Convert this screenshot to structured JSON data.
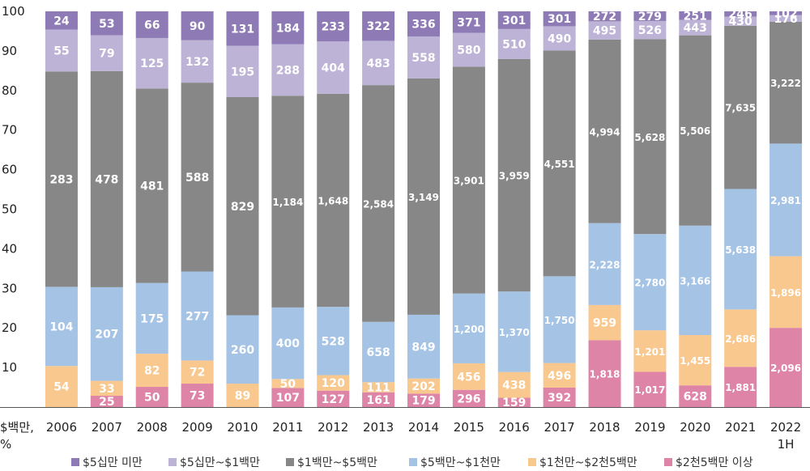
{
  "chart_data": {
    "type": "bar",
    "stacked": true,
    "normalized": "percent",
    "ylabel": "$백만, %",
    "ylim": [
      0,
      100
    ],
    "yticks": [
      10,
      20,
      30,
      40,
      50,
      60,
      70,
      80,
      90,
      100
    ],
    "grid": false,
    "legend_position": "bottom",
    "categories": [
      "2006",
      "2007",
      "2008",
      "2009",
      "2010",
      "2011",
      "2012",
      "2013",
      "2014",
      "2015",
      "2016",
      "2017",
      "2018",
      "2019",
      "2020",
      "2021",
      "2022 1H"
    ],
    "category_lines": [
      [
        "2006"
      ],
      [
        "2007"
      ],
      [
        "2008"
      ],
      [
        "2009"
      ],
      [
        "2010"
      ],
      [
        "2011"
      ],
      [
        "2012"
      ],
      [
        "2013"
      ],
      [
        "2014"
      ],
      [
        "2015"
      ],
      [
        "2016"
      ],
      [
        "2017"
      ],
      [
        "2018"
      ],
      [
        "2019"
      ],
      [
        "2020"
      ],
      [
        "2021"
      ],
      [
        "2022",
        "1H"
      ]
    ],
    "series": [
      {
        "name": "$2천5백만 이상",
        "color": "#de84a7",
        "values": [
          0,
          25,
          50,
          73,
          0,
          107,
          127,
          161,
          179,
          296,
          159,
          392,
          1818,
          1017,
          628,
          1881,
          2096
        ],
        "labels": [
          "",
          "25",
          "50",
          "73",
          "",
          "107",
          "127",
          "161",
          "179",
          "296",
          "159",
          "392",
          "1,818",
          "1,017",
          "628",
          "1,881",
          "2,096"
        ]
      },
      {
        "name": "$1천만~$2천5백만",
        "color": "#f9c88f",
        "values": [
          54,
          33,
          82,
          72,
          89,
          50,
          120,
          111,
          202,
          456,
          438,
          496,
          959,
          1201,
          1455,
          2686,
          1896
        ],
        "labels": [
          "54",
          "33",
          "82",
          "72",
          "89",
          "50",
          "120",
          "111",
          "202",
          "456",
          "438",
          "496",
          "959",
          "1,201",
          "1,455",
          "2,686",
          "1,896"
        ]
      },
      {
        "name": "$5백만~$1천만",
        "color": "#a5c3e5",
        "values": [
          104,
          207,
          175,
          277,
          260,
          400,
          528,
          658,
          849,
          1200,
          1370,
          1750,
          2228,
          2780,
          3166,
          5638,
          2981
        ],
        "labels": [
          "104",
          "207",
          "175",
          "277",
          "260",
          "400",
          "528",
          "658",
          "849",
          "1,200",
          "1,370",
          "1,750",
          "2,228",
          "2,780",
          "3,166",
          "5,638",
          "2,981"
        ]
      },
      {
        "name": "$1백만~$5백만",
        "color": "#878787",
        "values": [
          283,
          478,
          481,
          588,
          829,
          1184,
          1648,
          2584,
          3149,
          3901,
          3959,
          4551,
          4994,
          5628,
          5506,
          7635,
          3222
        ],
        "labels": [
          "283",
          "478",
          "481",
          "588",
          "829",
          "1,184",
          "1,648",
          "2,584",
          "3,149",
          "3,901",
          "3,959",
          "4,551",
          "4,994",
          "5,628",
          "5,506",
          "7,635",
          "3,222"
        ]
      },
      {
        "name": "$5십만~$1백만",
        "color": "#bdb3d6",
        "values": [
          55,
          79,
          125,
          132,
          195,
          288,
          404,
          483,
          558,
          580,
          510,
          490,
          495,
          526,
          443,
          430,
          176
        ],
        "labels": [
          "55",
          "79",
          "125",
          "132",
          "195",
          "288",
          "404",
          "483",
          "558",
          "580",
          "510",
          "490",
          "495",
          "526",
          "443",
          "430",
          "176"
        ]
      },
      {
        "name": "$5십만 미만",
        "color": "#8e7bb5",
        "values": [
          24,
          53,
          66,
          90,
          131,
          184,
          233,
          322,
          336,
          371,
          301,
          301,
          272,
          279,
          251,
          246,
          102
        ],
        "labels": [
          "24",
          "53",
          "66",
          "90",
          "131",
          "184",
          "233",
          "322",
          "336",
          "371",
          "301",
          "301",
          "272",
          "279",
          "251",
          "246",
          "102"
        ]
      }
    ],
    "legend_order": [
      "$5십만 미만",
      "$5십만~$1백만",
      "$1백만~$5백만",
      "$5백만~$1천만",
      "$1천만~$2천5백만",
      "$2천5백만 이상"
    ]
  }
}
